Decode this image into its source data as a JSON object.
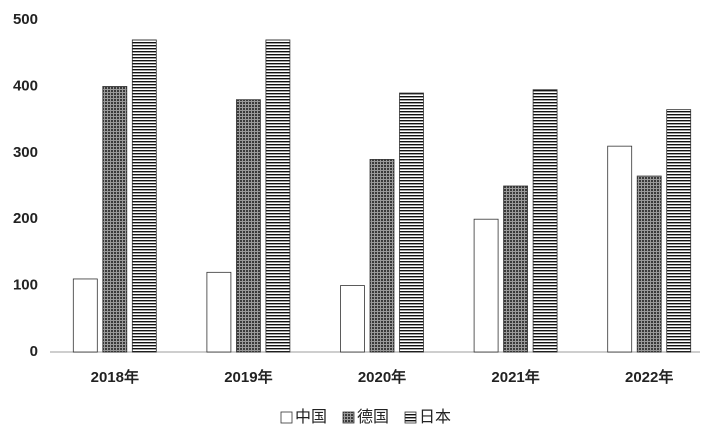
{
  "chart_data": {
    "type": "bar",
    "categories": [
      "2018年",
      "2019年",
      "2020年",
      "2021年",
      "2022年"
    ],
    "series": [
      {
        "name": "中国",
        "color": "#ffffff",
        "pattern": "solid",
        "values": [
          110,
          120,
          100,
          200,
          310
        ]
      },
      {
        "name": "德国",
        "color": "#6e6e6e",
        "pattern": "crosshatch",
        "values": [
          400,
          380,
          290,
          250,
          265
        ]
      },
      {
        "name": "日本",
        "color": "#ffffff",
        "pattern": "horizontal",
        "values": [
          470,
          470,
          390,
          395,
          365
        ]
      }
    ],
    "ylim": [
      0,
      500
    ],
    "yticks": [
      0,
      100,
      200,
      300,
      400,
      500
    ],
    "grid": false,
    "legend": "bottom"
  }
}
